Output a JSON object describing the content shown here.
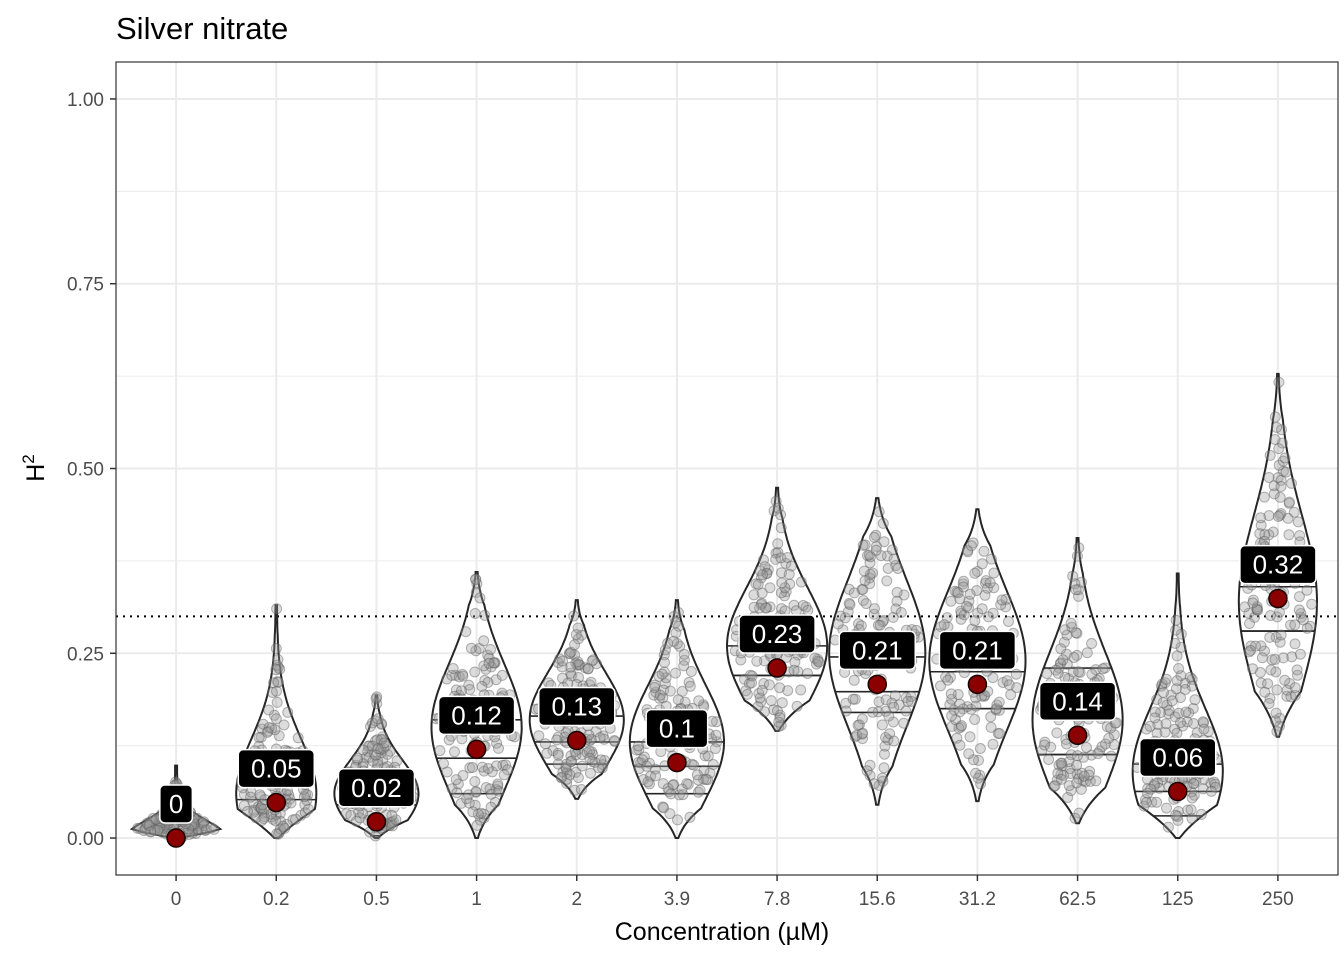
{
  "chart_data": {
    "type": "violin",
    "title": "Silver nitrate",
    "xlabel": "Concentration (µM)",
    "ylabel_base": "H",
    "ylabel_sup": "2",
    "ylim": [
      -0.05,
      1.05
    ],
    "yticks": [
      0.0,
      0.25,
      0.5,
      0.75,
      1.0
    ],
    "ytick_labels": [
      "0.00",
      "0.25",
      "0.50",
      "0.75",
      "1.00"
    ],
    "reference_line": 0.3,
    "grid": true,
    "colors": {
      "violin_stroke": "#262626",
      "point_fill": "#8b0000",
      "label_bg": "#000000",
      "label_text": "#ffffff",
      "dots": "#808080"
    },
    "categories": [
      "0",
      "0.2",
      "0.5",
      "1",
      "2",
      "3.9",
      "7.8",
      "15.6",
      "31.2",
      "62.5",
      "125",
      "250"
    ],
    "groups": [
      {
        "label": "0",
        "mean": 0.0,
        "label_text": "0",
        "min": 0.0,
        "max": 0.098,
        "q1": 0.0,
        "median": 0.0,
        "q3": 0.0,
        "peak": 0.0,
        "width": 0.44
      },
      {
        "label": "0.2",
        "mean": 0.048,
        "label_text": "0.05",
        "min": 0.0,
        "max": 0.315,
        "q1": 0.0,
        "median": 0.052,
        "q3": 0.085,
        "peak": 0.06,
        "width": 0.4
      },
      {
        "label": "0.5",
        "mean": 0.022,
        "label_text": "0.02",
        "min": 0.0,
        "max": 0.193,
        "q1": 0.0,
        "median": 0.003,
        "q3": 0.045,
        "peak": 0.06,
        "width": 0.42
      },
      {
        "label": "1",
        "mean": 0.12,
        "label_text": "0.12",
        "min": 0.0,
        "max": 0.36,
        "q1": 0.06,
        "median": 0.108,
        "q3": 0.16,
        "peak": 0.15,
        "width": 0.45
      },
      {
        "label": "2",
        "mean": 0.132,
        "label_text": "0.13",
        "min": 0.053,
        "max": 0.322,
        "q1": 0.1,
        "median": 0.13,
        "q3": 0.165,
        "peak": 0.16,
        "width": 0.47
      },
      {
        "label": "3.9",
        "mean": 0.102,
        "label_text": "0.1",
        "min": 0.0,
        "max": 0.322,
        "q1": 0.06,
        "median": 0.097,
        "q3": 0.13,
        "peak": 0.13,
        "width": 0.47
      },
      {
        "label": "7.8",
        "mean": 0.23,
        "label_text": "0.23",
        "min": 0.145,
        "max": 0.474,
        "q1": 0.22,
        "median": 0.22,
        "q3": 0.26,
        "peak": 0.26,
        "width": 0.5
      },
      {
        "label": "15.6",
        "mean": 0.208,
        "label_text": "0.21",
        "min": 0.045,
        "max": 0.46,
        "q1": 0.17,
        "median": 0.198,
        "q3": 0.245,
        "peak": 0.25,
        "width": 0.48
      },
      {
        "label": "31.2",
        "mean": 0.208,
        "label_text": "0.21",
        "min": 0.05,
        "max": 0.445,
        "q1": 0.175,
        "median": 0.175,
        "q3": 0.225,
        "peak": 0.24,
        "width": 0.48
      },
      {
        "label": "62.5",
        "mean": 0.139,
        "label_text": "0.14",
        "min": 0.02,
        "max": 0.406,
        "q1": 0.113,
        "median": 0.113,
        "q3": 0.23,
        "peak": 0.16,
        "width": 0.45
      },
      {
        "label": "125",
        "mean": 0.063,
        "label_text": "0.06",
        "min": 0.0,
        "max": 0.358,
        "q1": 0.03,
        "median": 0.063,
        "q3": 0.1,
        "peak": 0.09,
        "width": 0.45
      },
      {
        "label": "250",
        "mean": 0.324,
        "label_text": "0.32",
        "min": 0.137,
        "max": 0.628,
        "q1": 0.28,
        "median": 0.28,
        "q3": 0.34,
        "peak": 0.32,
        "width": 0.39
      }
    ]
  }
}
